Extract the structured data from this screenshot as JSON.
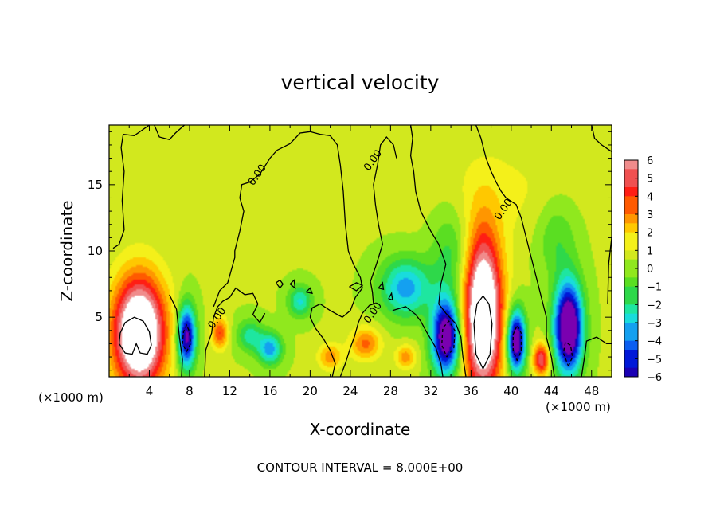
{
  "chart_data": {
    "type": "heatmap",
    "title": "vertical velocity",
    "xlabel": "X-coordinate",
    "ylabel": "Z-coordinate",
    "x_unit_left": "(×1000 m)",
    "x_unit_right": "(×1000 m)",
    "footer": "CONTOUR INTERVAL = 8.000E+00",
    "xlim": [
      0,
      50
    ],
    "ylim": [
      0.5,
      19.5
    ],
    "xticks": [
      4,
      8,
      12,
      16,
      20,
      24,
      28,
      32,
      36,
      40,
      44,
      48
    ],
    "yticks": [
      5,
      10,
      15
    ],
    "colorbar": {
      "ticks": [
        6,
        5,
        4,
        3,
        2,
        1,
        0,
        -1,
        -2,
        -3,
        -4,
        -5,
        -6
      ],
      "tick_labels": [
        "6",
        "5",
        "4",
        "3",
        "2",
        "1",
        "0",
        "−1",
        "−2",
        "−3",
        "−4",
        "−5",
        "−6"
      ],
      "range": [
        -6,
        6
      ]
    },
    "contour_labels": [
      {
        "text": "0.00",
        "x": 11.0,
        "y": 4.8
      },
      {
        "text": "0.00",
        "x": 15.0,
        "y": 15.6
      },
      {
        "text": "0.00",
        "x": 26.5,
        "y": 16.7
      },
      {
        "text": "0.00",
        "x": 39.5,
        "y": 13.0
      },
      {
        "text": "0.00",
        "x": 26.5,
        "y": 5.2
      }
    ],
    "features": [
      {
        "kind": "updraft",
        "x": 3.0,
        "y": 3.8,
        "w": 2.6,
        "h": 4.2,
        "amp": 9
      },
      {
        "kind": "updraft",
        "x": 37.2,
        "y": 5.2,
        "w": 1.9,
        "h": 6.0,
        "amp": 9
      },
      {
        "kind": "updraft",
        "x": 43.0,
        "y": 1.8,
        "w": 0.8,
        "h": 1.2,
        "amp": 5
      },
      {
        "kind": "updraft",
        "x": 11.0,
        "y": 3.8,
        "w": 0.8,
        "h": 1.2,
        "amp": 3.5
      },
      {
        "kind": "updraft",
        "x": 22.0,
        "y": 2.0,
        "w": 1.2,
        "h": 1.0,
        "amp": 2.5
      },
      {
        "kind": "updraft",
        "x": 25.5,
        "y": 3.0,
        "w": 1.5,
        "h": 1.2,
        "amp": 3
      },
      {
        "kind": "updraft",
        "x": 29.5,
        "y": 2.0,
        "w": 1.0,
        "h": 0.9,
        "amp": 2.5
      },
      {
        "kind": "updraft",
        "x": 39.0,
        "y": 14.5,
        "w": 7.0,
        "h": 4.0,
        "amp": 0.8
      },
      {
        "kind": "downdraft",
        "x": 7.7,
        "y": 3.5,
        "w": 0.9,
        "h": 2.4,
        "amp": -7
      },
      {
        "kind": "downdraft",
        "x": 33.5,
        "y": 3.5,
        "w": 1.4,
        "h": 2.8,
        "amp": -8
      },
      {
        "kind": "downdraft",
        "x": 40.5,
        "y": 3.2,
        "w": 0.9,
        "h": 2.3,
        "amp": -8
      },
      {
        "kind": "downdraft",
        "x": 45.7,
        "y": 4.2,
        "w": 1.4,
        "h": 3.4,
        "amp": -9
      },
      {
        "kind": "downdraft",
        "x": 16.0,
        "y": 2.6,
        "w": 1.2,
        "h": 1.2,
        "amp": -4
      },
      {
        "kind": "downdraft",
        "x": 14.0,
        "y": 3.6,
        "w": 1.3,
        "h": 1.2,
        "amp": -2.5
      },
      {
        "kind": "downdraft",
        "x": 19.0,
        "y": 6.2,
        "w": 1.2,
        "h": 1.2,
        "amp": -3
      },
      {
        "kind": "downdraft",
        "x": 29.5,
        "y": 7.2,
        "w": 2.5,
        "h": 2.2,
        "amp": -4
      },
      {
        "kind": "downdraft",
        "x": 34.0,
        "y": 9.8,
        "w": 2.0,
        "h": 3.5,
        "amp": -1.8
      },
      {
        "kind": "downdraft",
        "x": 44.5,
        "y": 11.0,
        "w": 2.0,
        "h": 3.0,
        "amp": -1.5
      }
    ],
    "line_contours": [
      {
        "style": "solid",
        "points": [
          [
            1.0,
            3.0
          ],
          [
            1.6,
            2.3
          ],
          [
            2.3,
            2.2
          ],
          [
            2.7,
            3.0
          ],
          [
            3.1,
            2.3
          ],
          [
            3.8,
            2.2
          ],
          [
            4.2,
            2.9
          ],
          [
            4.0,
            3.9
          ],
          [
            3.4,
            4.7
          ],
          [
            2.5,
            5.0
          ],
          [
            1.6,
            4.6
          ],
          [
            1.1,
            3.8
          ],
          [
            1.0,
            3.0
          ]
        ]
      },
      {
        "style": "solid",
        "points": [
          [
            37.2,
            1.1
          ],
          [
            37.9,
            2.2
          ],
          [
            38.1,
            4.5
          ],
          [
            37.8,
            6.0
          ],
          [
            37.2,
            6.6
          ],
          [
            36.6,
            6.0
          ],
          [
            36.3,
            4.5
          ],
          [
            36.5,
            2.2
          ],
          [
            37.2,
            1.1
          ]
        ]
      },
      {
        "style": "dashed",
        "points": [
          [
            7.7,
            2.4
          ],
          [
            8.1,
            3.0
          ],
          [
            8.0,
            3.9
          ],
          [
            7.7,
            4.4
          ],
          [
            7.4,
            3.9
          ],
          [
            7.3,
            3.0
          ],
          [
            7.7,
            2.4
          ]
        ]
      },
      {
        "style": "dashed",
        "points": [
          [
            33.6,
            2.0
          ],
          [
            34.3,
            2.7
          ],
          [
            34.4,
            4.0
          ],
          [
            33.8,
            4.7
          ],
          [
            33.2,
            4.2
          ],
          [
            33.1,
            2.9
          ],
          [
            33.6,
            2.0
          ]
        ]
      },
      {
        "style": "dashed",
        "points": [
          [
            40.6,
            1.7
          ],
          [
            41.0,
            2.5
          ],
          [
            41.0,
            3.8
          ],
          [
            40.6,
            4.4
          ],
          [
            40.2,
            3.7
          ],
          [
            40.2,
            2.5
          ],
          [
            40.6,
            1.7
          ]
        ]
      },
      {
        "style": "dashed",
        "points": [
          [
            45.7,
            1.3
          ],
          [
            46.1,
            2.0
          ],
          [
            45.9,
            2.9
          ],
          [
            45.4,
            3.1
          ],
          [
            45.2,
            2.3
          ],
          [
            45.7,
            1.3
          ]
        ]
      },
      {
        "style": "solid",
        "points": [
          [
            0.4,
            10.2
          ],
          [
            1.0,
            10.5
          ],
          [
            1.5,
            11.6
          ],
          [
            1.3,
            13.8
          ],
          [
            1.5,
            16.0
          ],
          [
            1.2,
            17.8
          ],
          [
            1.4,
            18.8
          ],
          [
            2.5,
            18.7
          ],
          [
            4.0,
            19.5
          ]
        ]
      },
      {
        "style": "solid",
        "points": [
          [
            4.5,
            19.5
          ],
          [
            5.0,
            18.6
          ],
          [
            6.0,
            18.4
          ],
          [
            6.6,
            18.9
          ],
          [
            7.5,
            19.5
          ]
        ]
      },
      {
        "style": "solid",
        "points": [
          [
            6.0,
            6.7
          ],
          [
            6.7,
            5.6
          ],
          [
            7.0,
            3.5
          ],
          [
            7.3,
            1.8
          ],
          [
            7.2,
            0.5
          ]
        ]
      },
      {
        "style": "solid",
        "points": [
          [
            9.5,
            0.5
          ],
          [
            9.6,
            2.5
          ],
          [
            10.2,
            3.8
          ],
          [
            10.4,
            5.0
          ],
          [
            10.8,
            5.8
          ],
          [
            11.3,
            6.2
          ],
          [
            12.0,
            6.5
          ],
          [
            12.6,
            7.2
          ],
          [
            13.5,
            6.7
          ],
          [
            14.3,
            6.8
          ],
          [
            14.8,
            6.0
          ],
          [
            14.3,
            5.2
          ],
          [
            15.0,
            4.6
          ],
          [
            15.5,
            5.3
          ]
        ]
      },
      {
        "style": "solid",
        "points": [
          [
            10.4,
            5.8
          ],
          [
            11.0,
            7.0
          ],
          [
            11.8,
            7.6
          ],
          [
            12.5,
            9.5
          ],
          [
            12.5,
            10.0
          ],
          [
            13.0,
            11.5
          ],
          [
            13.4,
            13.0
          ],
          [
            13.0,
            14.0
          ],
          [
            13.2,
            15.0
          ],
          [
            14.0,
            15.2
          ],
          [
            15.0,
            15.8
          ],
          [
            16.0,
            17.0
          ],
          [
            16.7,
            17.6
          ],
          [
            18.0,
            18.1
          ],
          [
            19.0,
            18.9
          ],
          [
            20.0,
            19.0
          ],
          [
            21.0,
            18.8
          ],
          [
            22.0,
            18.7
          ],
          [
            22.7,
            18.0
          ],
          [
            23.0,
            16.5
          ],
          [
            23.3,
            14.5
          ],
          [
            23.5,
            12.0
          ],
          [
            23.8,
            10.0
          ],
          [
            24.3,
            9.0
          ],
          [
            25.0,
            8.0
          ],
          [
            25.2,
            7.2
          ],
          [
            24.5,
            6.5
          ],
          [
            24.0,
            5.5
          ],
          [
            23.2,
            5.0
          ],
          [
            22.0,
            5.5
          ],
          [
            21.0,
            6.0
          ],
          [
            20.2,
            5.7
          ],
          [
            20.0,
            5.0
          ],
          [
            20.5,
            4.2
          ],
          [
            21.3,
            3.4
          ],
          [
            22.0,
            2.5
          ],
          [
            22.5,
            1.5
          ],
          [
            22.2,
            0.5
          ]
        ]
      },
      {
        "style": "solid",
        "points": [
          [
            23.0,
            0.5
          ],
          [
            23.5,
            1.5
          ],
          [
            24.0,
            2.7
          ],
          [
            24.4,
            3.5
          ],
          [
            24.8,
            4.6
          ],
          [
            25.2,
            5.3
          ],
          [
            25.9,
            5.9
          ],
          [
            26.3,
            6.0
          ],
          [
            26.2,
            6.9
          ],
          [
            26.0,
            7.7
          ],
          [
            26.6,
            9.0
          ],
          [
            27.2,
            10.5
          ],
          [
            26.8,
            12.0
          ],
          [
            26.5,
            13.5
          ],
          [
            26.3,
            15.0
          ],
          [
            26.7,
            16.5
          ],
          [
            27.0,
            18.0
          ],
          [
            27.6,
            18.6
          ],
          [
            28.3,
            18.0
          ],
          [
            28.6,
            17.0
          ]
        ]
      },
      {
        "style": "solid",
        "points": [
          [
            28.2,
            5.5
          ],
          [
            29.5,
            5.8
          ],
          [
            30.5,
            5.2
          ],
          [
            31.0,
            4.7
          ],
          [
            31.5,
            4.0
          ],
          [
            32.5,
            2.7
          ],
          [
            33.0,
            1.5
          ],
          [
            33.2,
            0.5
          ]
        ]
      },
      {
        "style": "solid",
        "points": [
          [
            35.5,
            0.5
          ],
          [
            35.2,
            2.0
          ],
          [
            35.0,
            3.5
          ],
          [
            34.5,
            4.5
          ],
          [
            33.5,
            5.3
          ],
          [
            32.8,
            6.0
          ],
          [
            33.0,
            7.5
          ],
          [
            33.5,
            9.0
          ],
          [
            32.8,
            10.5
          ],
          [
            32.0,
            11.5
          ],
          [
            31.0,
            13.0
          ],
          [
            30.5,
            14.5
          ],
          [
            30.3,
            16.0
          ],
          [
            30.0,
            17.2
          ],
          [
            30.2,
            18.5
          ],
          [
            30.0,
            19.5
          ]
        ]
      },
      {
        "style": "solid",
        "points": [
          [
            36.5,
            19.5
          ],
          [
            37.0,
            18.5
          ],
          [
            37.5,
            17.0
          ],
          [
            38.0,
            16.0
          ],
          [
            38.5,
            15.2
          ],
          [
            39.0,
            14.5
          ],
          [
            39.5,
            14.0
          ],
          [
            40.5,
            13.5
          ],
          [
            41.0,
            12.5
          ],
          [
            41.5,
            11.0
          ],
          [
            42.0,
            9.5
          ],
          [
            42.5,
            8.0
          ],
          [
            43.0,
            6.5
          ],
          [
            43.5,
            5.0
          ],
          [
            43.5,
            3.5
          ],
          [
            44.0,
            2.0
          ],
          [
            44.3,
            0.5
          ]
        ]
      },
      {
        "style": "solid",
        "points": [
          [
            47.0,
            0.5
          ],
          [
            47.3,
            2.0
          ],
          [
            47.5,
            3.2
          ],
          [
            48.5,
            3.5
          ],
          [
            49.5,
            3.0
          ],
          [
            50.0,
            3.0
          ]
        ]
      },
      {
        "style": "solid",
        "points": [
          [
            48.0,
            19.5
          ],
          [
            48.3,
            18.5
          ],
          [
            49.0,
            18.0
          ],
          [
            50.0,
            17.5
          ]
        ]
      },
      {
        "style": "solid",
        "points": [
          [
            49.6,
            6.0
          ],
          [
            49.7,
            9.0
          ],
          [
            50.0,
            11.0
          ]
        ]
      },
      {
        "style": "solid",
        "points": [
          [
            16.6,
            7.6
          ],
          [
            17.0,
            7.8
          ],
          [
            17.3,
            7.5
          ],
          [
            17.0,
            7.2
          ],
          [
            16.6,
            7.6
          ]
        ]
      },
      {
        "style": "solid",
        "points": [
          [
            18.0,
            7.5
          ],
          [
            18.4,
            7.8
          ],
          [
            18.5,
            7.2
          ],
          [
            18.0,
            7.5
          ]
        ]
      },
      {
        "style": "solid",
        "points": [
          [
            19.6,
            6.9
          ],
          [
            20.0,
            7.2
          ],
          [
            20.2,
            6.8
          ],
          [
            19.6,
            6.9
          ]
        ]
      },
      {
        "style": "solid",
        "points": [
          [
            23.9,
            7.3
          ],
          [
            24.6,
            7.6
          ],
          [
            25.2,
            7.4
          ],
          [
            24.6,
            7.0
          ],
          [
            23.9,
            7.3
          ]
        ]
      },
      {
        "style": "solid",
        "points": [
          [
            26.8,
            7.2
          ],
          [
            27.2,
            7.6
          ],
          [
            27.3,
            7.1
          ],
          [
            26.8,
            7.2
          ]
        ]
      },
      {
        "style": "solid",
        "points": [
          [
            27.8,
            6.4
          ],
          [
            28.1,
            6.8
          ],
          [
            28.2,
            6.3
          ],
          [
            27.8,
            6.4
          ]
        ]
      }
    ]
  }
}
